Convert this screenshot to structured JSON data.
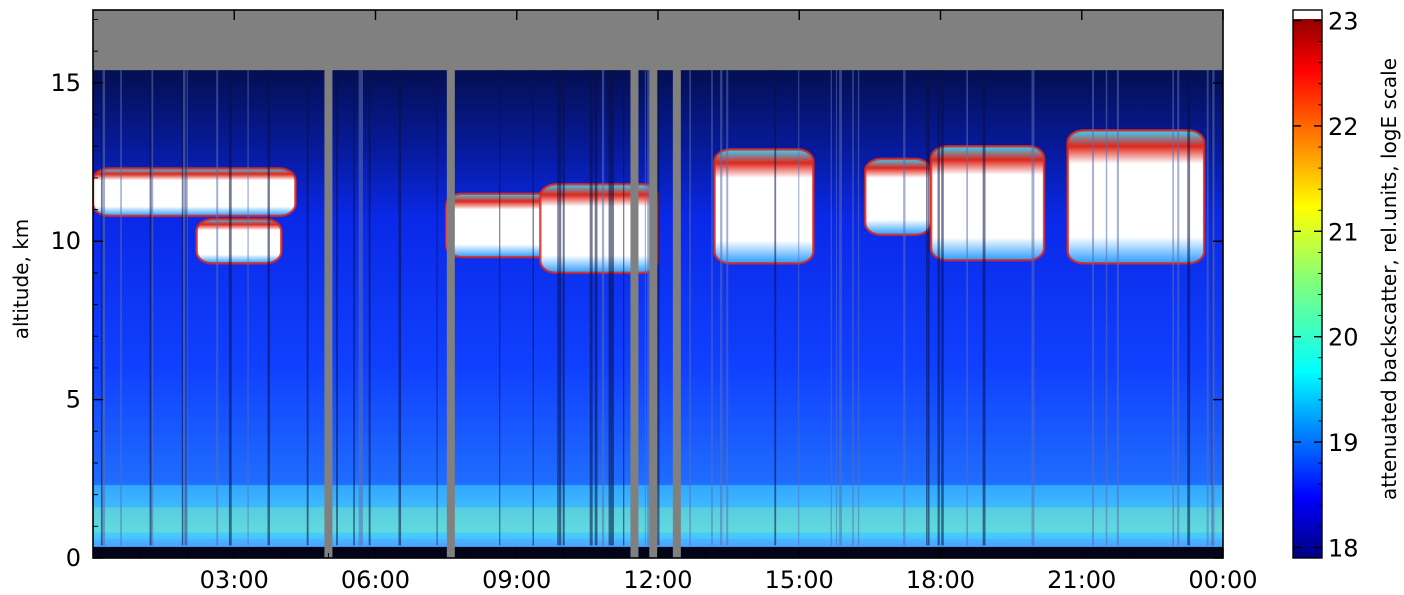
{
  "chart_data": {
    "type": "heatmap",
    "title": "",
    "xlabel": "",
    "ylabel": "altitude, km",
    "x_axis": {
      "kind": "time_of_day",
      "range_hours": [
        0,
        24
      ],
      "tick_values_hours": [
        3,
        6,
        9,
        12,
        15,
        18,
        21,
        24
      ],
      "tick_labels": [
        "03:00",
        "06:00",
        "09:00",
        "12:00",
        "15:00",
        "18:00",
        "21:00",
        "00:00"
      ]
    },
    "y_axis": {
      "range_km": [
        0,
        17.3
      ],
      "tick_values": [
        0,
        5,
        10,
        15
      ],
      "tick_labels": [
        "0",
        "5",
        "10",
        "15"
      ]
    },
    "colorbar": {
      "label": "attenuated backscatter, rel.units, logE scale",
      "range": [
        17.9,
        23.1
      ],
      "tick_values": [
        18,
        19,
        20,
        21,
        22,
        23
      ],
      "tick_labels": [
        "18",
        "19",
        "20",
        "21",
        "22",
        "23"
      ],
      "colormap": "jet",
      "over_color": "#ffffff",
      "missing_color": "#808080"
    },
    "features": {
      "no_data_above_km": 15.4,
      "boundary_layer_top_km": 2.3,
      "surface_dark_band_km": [
        0,
        0.35
      ],
      "cloud_layers": [
        {
          "start_h": 0.0,
          "end_h": 4.3,
          "base_km": 10.8,
          "top_km": 12.3
        },
        {
          "start_h": 2.2,
          "end_h": 4.0,
          "base_km": 9.3,
          "top_km": 10.7
        },
        {
          "start_h": 7.5,
          "end_h": 9.8,
          "base_km": 9.5,
          "top_km": 11.5
        },
        {
          "start_h": 9.5,
          "end_h": 12.0,
          "base_km": 9.0,
          "top_km": 11.8
        },
        {
          "start_h": 13.2,
          "end_h": 15.3,
          "base_km": 9.3,
          "top_km": 12.9
        },
        {
          "start_h": 16.4,
          "end_h": 17.8,
          "base_km": 10.2,
          "top_km": 12.6
        },
        {
          "start_h": 17.8,
          "end_h": 20.2,
          "base_km": 9.4,
          "top_km": 13.0
        },
        {
          "start_h": 20.7,
          "end_h": 23.6,
          "base_km": 9.3,
          "top_km": 13.5
        }
      ],
      "gap_columns_h": [
        5.0,
        7.6,
        11.5,
        11.9,
        12.4
      ]
    }
  }
}
